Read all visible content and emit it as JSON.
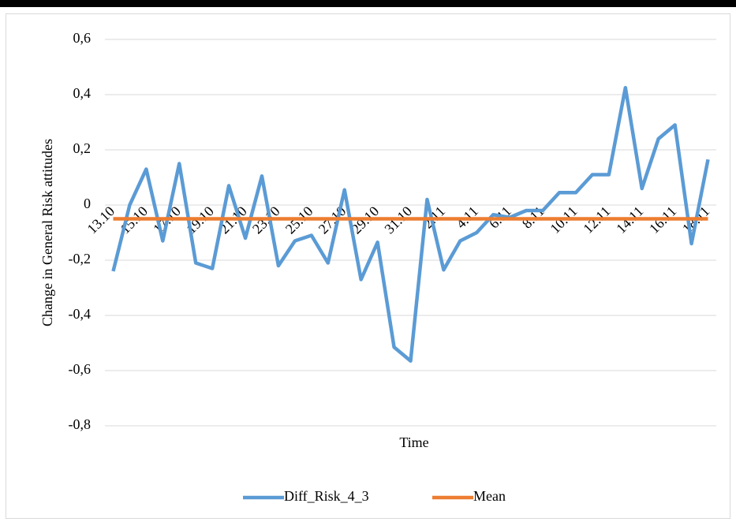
{
  "chart_data": {
    "type": "line",
    "x_label": "Time",
    "y_label": "Change in General Risk attitudes",
    "categories": [
      "13.10",
      null,
      "15.10",
      null,
      "17.10",
      null,
      "19.10",
      null,
      "21.10",
      null,
      "23.10",
      null,
      "25.10",
      null,
      "27.10",
      null,
      "29.10",
      null,
      "31.10",
      null,
      "2.11",
      null,
      "4.11",
      null,
      "6.11",
      null,
      "8.11",
      null,
      "10.11",
      null,
      "12.11",
      null,
      "14.11",
      null,
      "16.11",
      null,
      "18.11"
    ],
    "series": [
      {
        "name": "Diff_Risk_4_3",
        "color": "#5b9bd5",
        "values": [
          -0.24,
          0.0,
          0.13,
          -0.13,
          0.15,
          -0.21,
          -0.23,
          0.07,
          -0.12,
          0.105,
          -0.22,
          -0.13,
          -0.11,
          -0.21,
          0.055,
          -0.27,
          -0.135,
          -0.515,
          -0.565,
          0.02,
          -0.235,
          -0.13,
          -0.1,
          -0.035,
          -0.045,
          -0.02,
          -0.02,
          0.045,
          0.045,
          0.11,
          0.11,
          0.425,
          0.06,
          0.24,
          0.29,
          -0.14,
          0.165
        ]
      },
      {
        "name": "Mean",
        "color": "#ed7d31",
        "values": [
          -0.05,
          -0.05,
          -0.05,
          -0.05,
          -0.05,
          -0.05,
          -0.05,
          -0.05,
          -0.05,
          -0.05,
          -0.05,
          -0.05,
          -0.05,
          -0.05,
          -0.05,
          -0.05,
          -0.05,
          -0.05,
          -0.05,
          -0.05,
          -0.05,
          -0.05,
          -0.05,
          -0.05,
          -0.05,
          -0.05,
          -0.05,
          -0.05,
          -0.05,
          -0.05,
          -0.05,
          -0.05,
          -0.05,
          -0.05,
          -0.05,
          -0.05,
          -0.05
        ]
      }
    ],
    "ylim": [
      -0.8,
      0.6
    ],
    "yticks": [
      {
        "value": -0.8,
        "label": "-0,8"
      },
      {
        "value": -0.6,
        "label": "-0,6"
      },
      {
        "value": -0.4,
        "label": "-0,4"
      },
      {
        "value": -0.2,
        "label": "-0,2"
      },
      0,
      {
        "value": 0.2,
        "label": "0,2"
      },
      {
        "value": 0.4,
        "label": "0,4"
      },
      {
        "value": 0.6,
        "label": "0,6"
      }
    ],
    "grid": true,
    "legend": "bottom"
  }
}
